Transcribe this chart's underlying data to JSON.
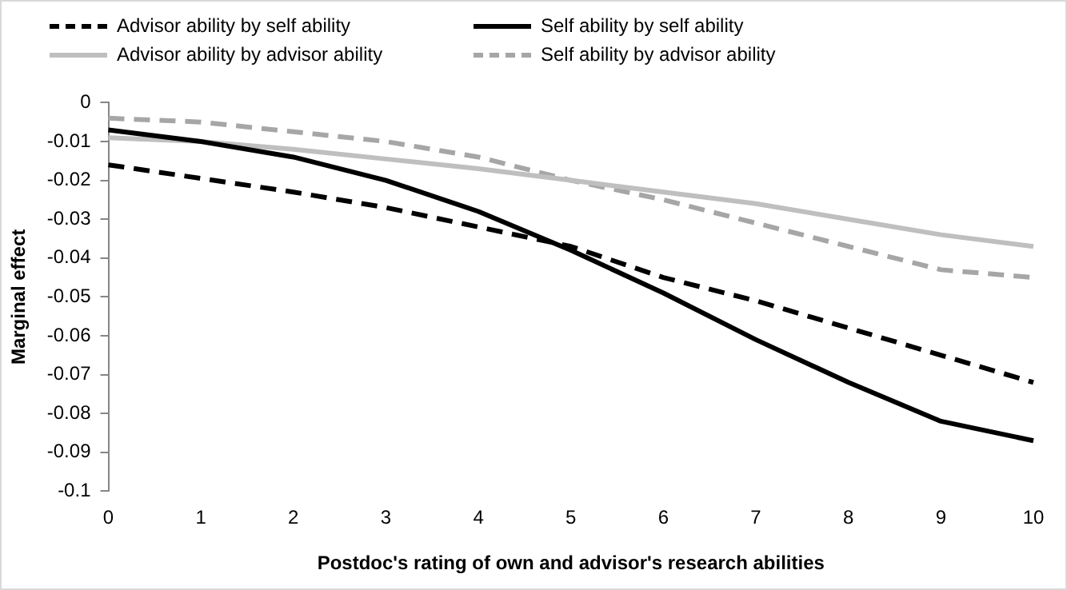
{
  "chart_data": {
    "type": "line",
    "xlabel": "Postdoc's rating of own and advisor's research abilities",
    "ylabel": "Marginal effect",
    "categories": [
      "0",
      "1",
      "2",
      "3",
      "4",
      "5",
      "6",
      "7",
      "8",
      "9",
      "10"
    ],
    "ylim": [
      -0.1,
      0
    ],
    "yticks": [
      -0.1,
      -0.09,
      -0.08,
      -0.07,
      -0.06,
      -0.05,
      -0.04,
      -0.03,
      -0.02,
      -0.01,
      0
    ],
    "grid": false,
    "legend": "top",
    "marker": "none",
    "series": [
      {
        "name": "Advisor ability by self ability",
        "color": "#000000",
        "line_style": "dashed",
        "values": [
          -0.016,
          -0.0195,
          -0.023,
          -0.027,
          -0.032,
          -0.037,
          -0.045,
          -0.051,
          -0.058,
          -0.065,
          -0.072
        ]
      },
      {
        "name": "Self ability by self ability",
        "color": "#000000",
        "line_style": "solid",
        "values": [
          -0.007,
          -0.01,
          -0.014,
          -0.02,
          -0.028,
          -0.038,
          -0.049,
          -0.061,
          -0.072,
          -0.082,
          -0.087
        ]
      },
      {
        "name": "Advisor ability by advisor ability",
        "color": "#bfbfbf",
        "line_style": "solid",
        "values": [
          -0.009,
          -0.01,
          -0.012,
          -0.0145,
          -0.017,
          -0.02,
          -0.023,
          -0.026,
          -0.03,
          -0.034,
          -0.037
        ]
      },
      {
        "name": "Self ability by advisor ability",
        "color": "#a6a6a6",
        "line_style": "dashed",
        "values": [
          -0.004,
          -0.005,
          -0.0075,
          -0.01,
          -0.014,
          -0.02,
          -0.025,
          -0.031,
          -0.037,
          -0.043,
          -0.045
        ]
      }
    ]
  }
}
